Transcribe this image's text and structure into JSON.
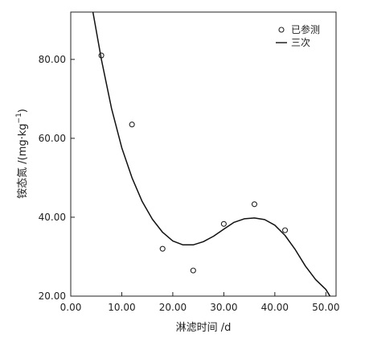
{
  "chart_data": {
    "type": "scatter",
    "xlabel": "淋滤时间 /d",
    "ylabel": "铵态氮 /(mg·kg",
    "ylabel_sup": "−1",
    "ylabel_tail": ")",
    "xlim": [
      0,
      52
    ],
    "ylim": [
      20,
      92
    ],
    "x_ticks": [
      0,
      10,
      20,
      30,
      40,
      50
    ],
    "x_tick_labels": [
      "0.00",
      "10.00",
      "20.00",
      "30.00",
      "40.00",
      "50.00"
    ],
    "y_ticks": [
      20,
      40,
      60,
      80
    ],
    "y_tick_labels": [
      "20.00",
      "40.00",
      "60.00",
      "80.00"
    ],
    "grid": false,
    "legend_position": "top-right",
    "series": [
      {
        "name": "已参测",
        "type": "scatter",
        "marker": "open-circle",
        "x": [
          6,
          12,
          18,
          24,
          30,
          36,
          42
        ],
        "y": [
          81.0,
          63.5,
          32.0,
          26.5,
          38.3,
          43.3,
          36.7
        ]
      },
      {
        "name": "三次",
        "type": "line",
        "x": [
          4,
          6,
          8,
          10,
          12,
          14,
          16,
          18,
          20,
          22,
          24,
          26,
          28,
          30,
          32,
          34,
          36,
          38,
          40,
          42,
          44,
          46,
          48,
          50,
          51
        ],
        "y": [
          94.5,
          80.0,
          67.5,
          57.6,
          50.0,
          44.0,
          39.5,
          36.2,
          34.0,
          33.0,
          33.0,
          33.8,
          35.2,
          37.0,
          38.7,
          39.6,
          39.8,
          39.4,
          38.0,
          35.4,
          31.8,
          27.6,
          24.2,
          21.7,
          19.6
        ]
      }
    ]
  }
}
